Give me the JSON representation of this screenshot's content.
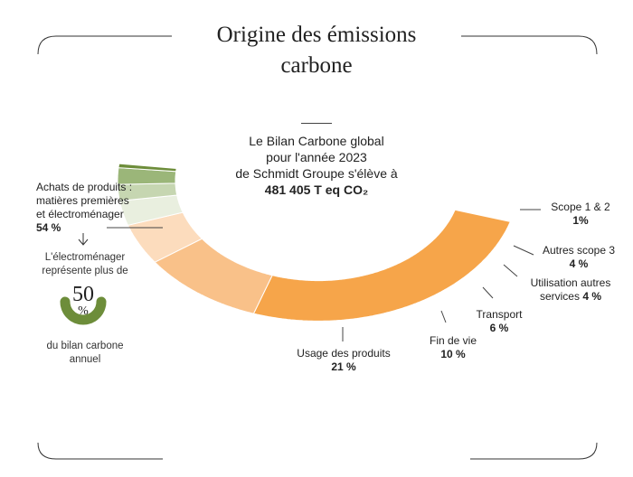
{
  "title_line1": "Origine des émissions",
  "title_line2": "carbone",
  "center": {
    "line1": "Le Bilan Carbone global",
    "line2": "pour l'année 2023",
    "line3": "de Schmidt Groupe s'élève à",
    "total": "481 405 T eq CO₂"
  },
  "note": {
    "line1": "L'électroménager",
    "line2": "représente plus de",
    "value": "50",
    "unit": "%",
    "fraction": 0.5,
    "line3": "du bilan carbone",
    "line4": "annuel"
  },
  "labels": {
    "achats": {
      "line1": "Achats de produits :",
      "line2": "matières premières",
      "line3": "et électroménager",
      "pct": "54 %"
    },
    "usage": {
      "line1": "Usage des produits",
      "pct": "21 %"
    },
    "finvie": {
      "line1": "Fin de vie",
      "pct": "10 %"
    },
    "transport": {
      "line1": "Transport",
      "pct": "6 %"
    },
    "services": {
      "line1": "Utilisation autres",
      "line2": "services",
      "pct": "4 %"
    },
    "scope3": {
      "line1": "Autres scope 3",
      "pct": "4 %"
    },
    "scope12": {
      "line1": "Scope 1 & 2",
      "pct": "1%"
    }
  },
  "chart_data": {
    "type": "pie",
    "categories": [
      "Achats de produits : matières premières et électroménager",
      "Usage des produits",
      "Fin de vie",
      "Transport",
      "Utilisation autres services",
      "Autres scope 3",
      "Scope 1 & 2"
    ],
    "values": [
      54,
      21,
      10,
      6,
      4,
      4,
      1
    ],
    "colors": [
      "#f6a54a",
      "#f9c189",
      "#fcdcbd",
      "#e9efdf",
      "#c6d6b1",
      "#9bb679",
      "#6d8d3a"
    ],
    "note_arc_color": "#6d8d3a"
  }
}
